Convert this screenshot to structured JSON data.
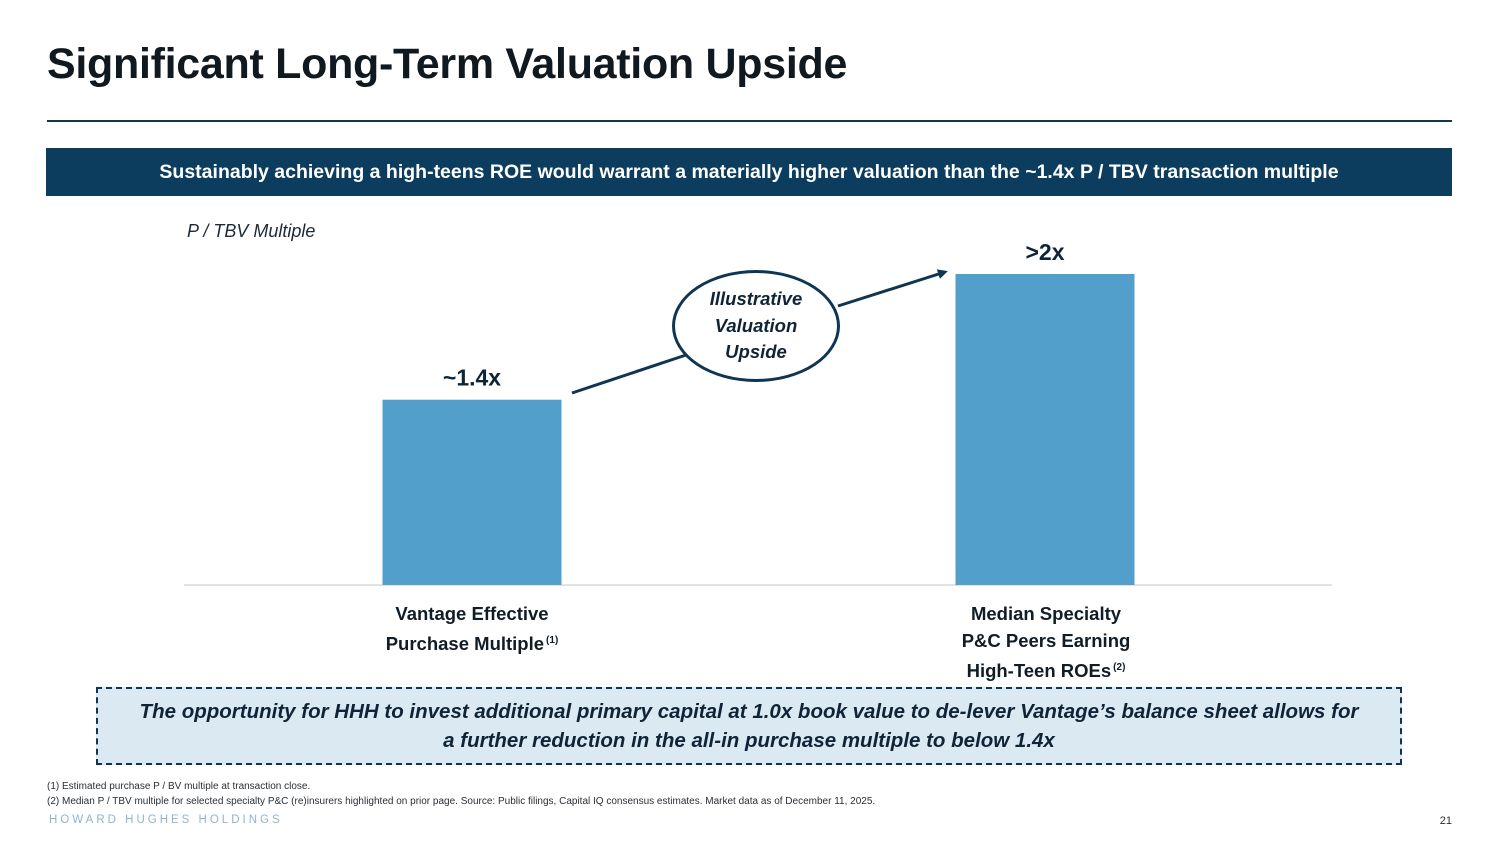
{
  "title": "Significant Long-Term Valuation Upside",
  "banner": "Sustainably achieving a high-teens ROE would warrant a materially higher valuation than the ~1.4x P / TBV transaction multiple",
  "callout": "Illustrative Valuation Upside",
  "note": "The opportunity for HHH to invest additional primary capital at 1.0x book value to de-lever Vantage’s balance sheet allows for a further reduction in the all-in purchase multiple to below 1.4x",
  "footnotes": [
    "(1) Estimated purchase P / BV multiple at transaction close.",
    "(2) Median P / TBV multiple for selected specialty P&C (re)insurers highlighted on prior page. Source: Public filings, Capital IQ consensus estimates. Market data as of December 11, 2025."
  ],
  "brand": "HOWARD HUGHES HOLDINGS",
  "page_number": "21",
  "colors": {
    "bar": "#519fca",
    "navy": "#0c3d5e",
    "note_bg": "#dbe9f3"
  },
  "chart_data": {
    "type": "bar",
    "ylabel": "P / TBV Multiple",
    "categories": [
      "Vantage Effective Purchase Multiple",
      "Median Specialty P&C Peers Earning High-Teen ROEs"
    ],
    "category_lines": [
      [
        "Vantage Effective",
        "Purchase Multiple"
      ],
      [
        "Median Specialty",
        "P&C Peers Earning",
        "High-Teen ROEs"
      ]
    ],
    "category_footnotes": [
      "(1)",
      "(2)"
    ],
    "values": [
      1.4,
      2.35
    ],
    "data_labels": [
      "~1.4x",
      ">2x"
    ],
    "ylim": [
      0,
      2.35
    ],
    "grid": false
  }
}
